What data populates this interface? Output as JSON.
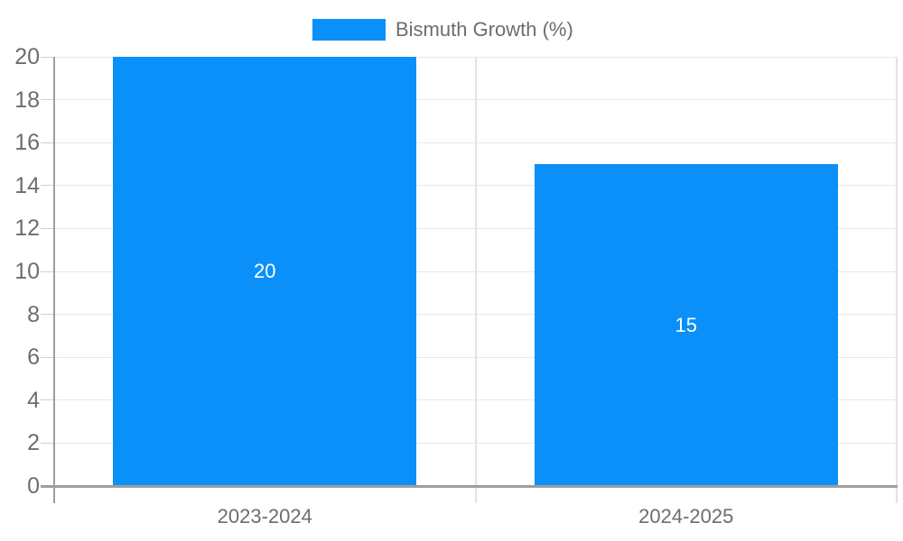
{
  "chart_data": {
    "type": "bar",
    "title": "",
    "categories": [
      "2023-2024",
      "2024-2025"
    ],
    "series": [
      {
        "name": "Bismuth Growth (%)",
        "values": [
          20,
          15
        ]
      }
    ],
    "values": [
      20,
      15
    ],
    "bar_value_labels": [
      "20",
      "15"
    ],
    "xlabel": "",
    "ylabel": "",
    "ylim": [
      0,
      20
    ],
    "ytick_step": 2,
    "ytick_labels": [
      "0",
      "2",
      "4",
      "6",
      "8",
      "10",
      "12",
      "14",
      "16",
      "18",
      "20"
    ],
    "grid": true,
    "legend_position": "top-center"
  },
  "legend": {
    "label": "Bismuth Growth (%)"
  },
  "colors": {
    "bar": "#0a90f8",
    "gridline": "#e8e8e8",
    "axis": "#9e9e9e",
    "tick_label": "#6d6d6d",
    "bar_label": "#ffffff",
    "background": "#ffffff"
  }
}
